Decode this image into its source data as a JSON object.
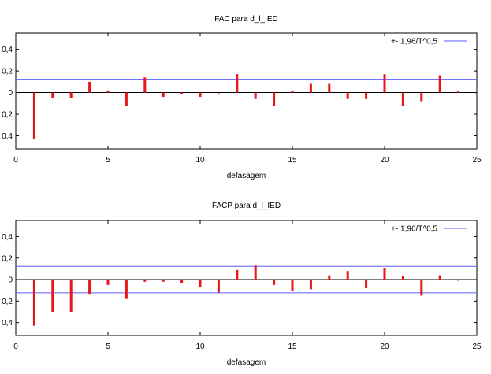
{
  "chart_data": [
    {
      "type": "bar",
      "title": "FAC para d_l_IED",
      "xlabel": "defasagem",
      "ylabel": "",
      "xlim": [
        0,
        25
      ],
      "ylim": [
        -0.52,
        0.55
      ],
      "xticks": [
        "0",
        "5",
        "10",
        "15",
        "20",
        "25"
      ],
      "yticks": [
        "0,4",
        "0,2",
        "0",
        "0,2",
        "0,4"
      ],
      "ytick_values": [
        0.4,
        0.2,
        0,
        -0.2,
        -0.4
      ],
      "legend": {
        "label": "+- 1,96/T^0,5",
        "color": "#5b5bff",
        "position": "top-right"
      },
      "confidence_band": 0.123,
      "bar_color": "#e8151b",
      "x": [
        1,
        2,
        3,
        4,
        5,
        6,
        7,
        8,
        9,
        10,
        11,
        12,
        13,
        14,
        15,
        16,
        17,
        18,
        19,
        20,
        21,
        22,
        23,
        24
      ],
      "values": [
        -0.43,
        -0.05,
        -0.05,
        0.1,
        0.02,
        -0.12,
        0.14,
        -0.04,
        -0.01,
        -0.04,
        0.0,
        0.17,
        -0.06,
        -0.12,
        0.02,
        0.08,
        0.08,
        -0.06,
        -0.06,
        0.17,
        -0.12,
        -0.08,
        0.16,
        0.01
      ]
    },
    {
      "type": "bar",
      "title": "FACP para d_l_IED",
      "xlabel": "defasagem",
      "ylabel": "",
      "xlim": [
        0,
        25
      ],
      "ylim": [
        -0.52,
        0.55
      ],
      "xticks": [
        "0",
        "5",
        "10",
        "15",
        "20",
        "25"
      ],
      "yticks": [
        "0,4",
        "0,2",
        "0",
        "0,2",
        "0,4"
      ],
      "ytick_values": [
        0.4,
        0.2,
        0,
        -0.2,
        -0.4
      ],
      "legend": {
        "label": "+- 1,96/T^0,5",
        "color": "#5b5bff",
        "position": "top-right"
      },
      "confidence_band": 0.123,
      "bar_color": "#e8151b",
      "x": [
        1,
        2,
        3,
        4,
        5,
        6,
        7,
        8,
        9,
        10,
        11,
        12,
        13,
        14,
        15,
        16,
        17,
        18,
        19,
        20,
        21,
        22,
        23,
        24
      ],
      "values": [
        -0.43,
        -0.3,
        -0.3,
        -0.14,
        -0.05,
        -0.18,
        -0.02,
        -0.02,
        -0.03,
        -0.07,
        -0.12,
        0.09,
        0.13,
        -0.05,
        -0.11,
        -0.09,
        0.04,
        0.08,
        -0.08,
        0.11,
        0.03,
        -0.15,
        0.04,
        -0.01
      ]
    }
  ]
}
